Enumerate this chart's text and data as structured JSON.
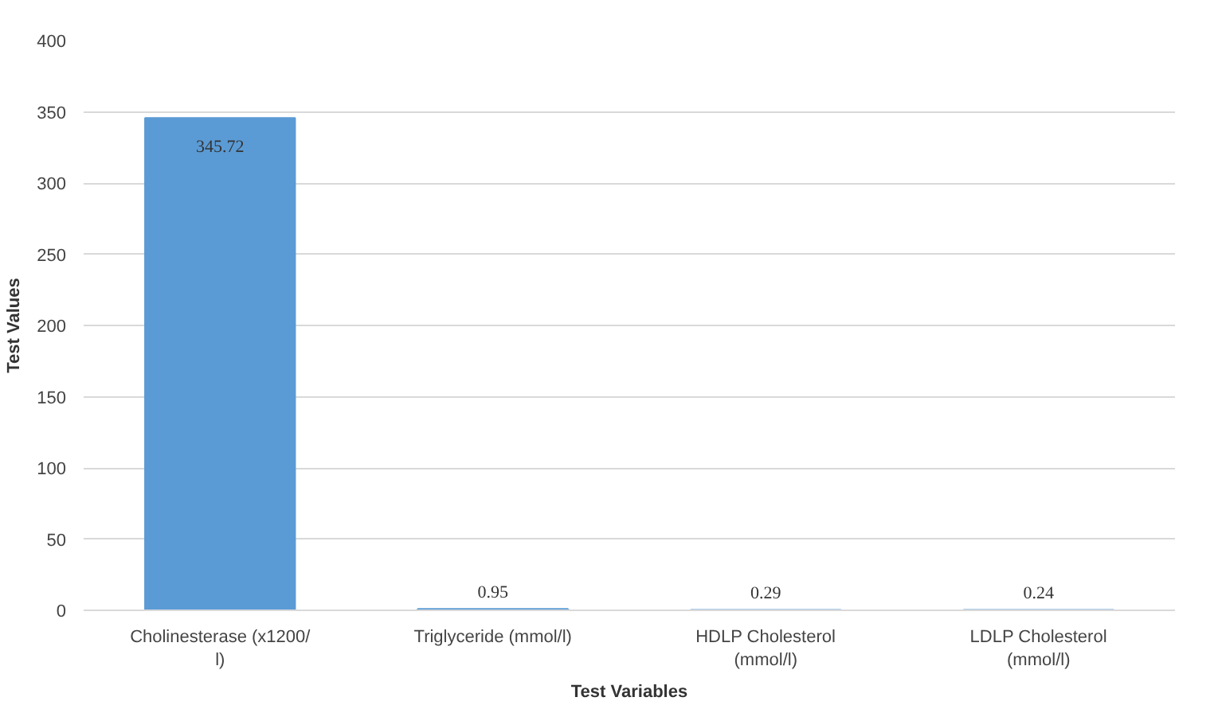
{
  "chart_data": {
    "type": "bar",
    "xlabel": "Test Variables",
    "ylabel": "Test Values",
    "categories": [
      "Cholinesterase (x1200/ l)",
      "Triglyceride (mmol/l)",
      "HDLP Cholesterol (mmol/l)",
      "LDLP Cholesterol (mmol/l)"
    ],
    "values": [
      345.72,
      0.95,
      0.29,
      0.24
    ],
    "color": "#5b9bd5",
    "ylim": [
      0,
      400
    ],
    "yticks": [
      0,
      50,
      100,
      150,
      200,
      250,
      300,
      350,
      400
    ],
    "grid": "y",
    "data_labels": true
  }
}
